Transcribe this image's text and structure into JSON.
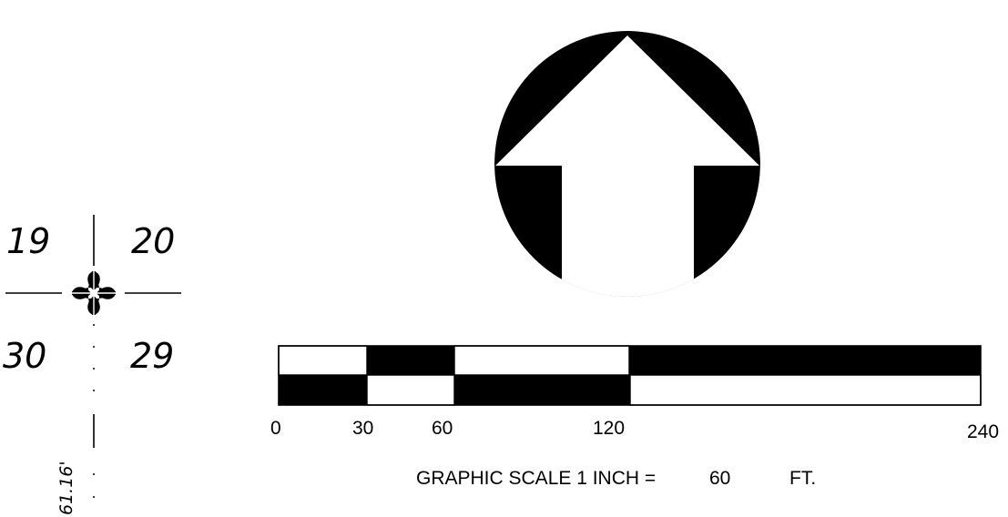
{
  "section_corner": {
    "section_numbers": {
      "top_left": "19",
      "top_right": "20",
      "bottom_left": "30",
      "bottom_right": "29"
    },
    "dimension": "61.16'"
  },
  "north_arrow": {
    "icon": "north-arrow-icon"
  },
  "graphic_scale": {
    "tick_labels": [
      "0",
      "30",
      "60",
      "120",
      "240"
    ],
    "caption": {
      "prefix": "GRAPHIC SCALE 1 INCH =",
      "value": "60",
      "unit": "FT."
    }
  },
  "colors": {
    "ink": "#000000",
    "paper": "#ffffff"
  }
}
